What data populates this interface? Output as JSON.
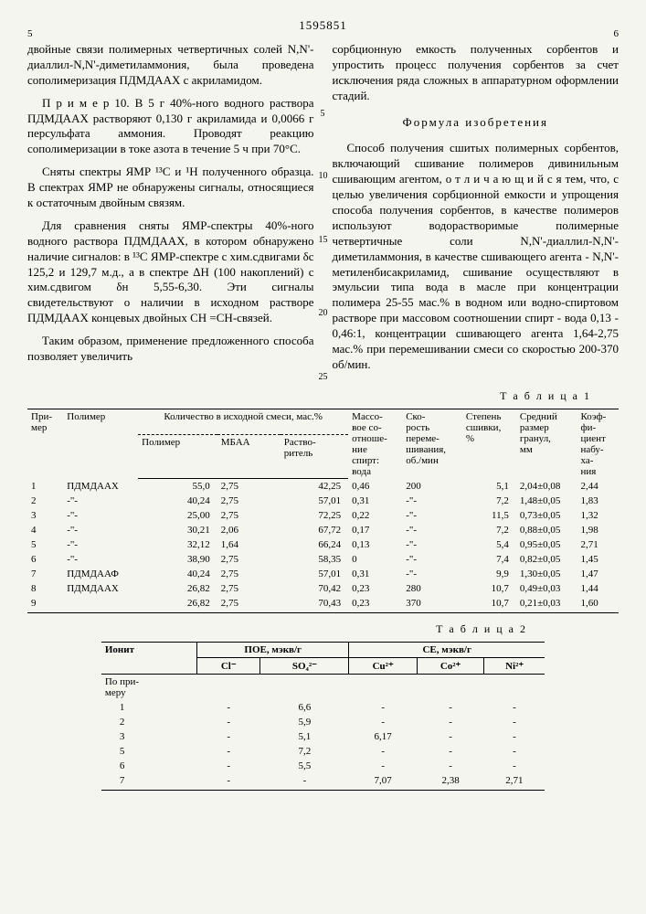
{
  "patent_number": "1595851",
  "col_left_num": "5",
  "col_right_num": "6",
  "left_paragraphs": {
    "p1": "двойные связи полимерных четвертичных солей N,N'-диаллил-N,N'-диметиламмония, была проведена сополимеризация ПДМДААХ с акриламидом.",
    "p2": "П р и м е р 10. В 5 г 40%-ного водного раствора ПДМДААХ растворяют 0,130 г акриламида и 0,0066 г персульфата аммония. Проводят реакцию сополимеризации в токе азота в течение 5 ч при 70°С.",
    "p3": "Сняты спектры ЯМР ¹³С и ¹Н полученного образца. В спектрах ЯМР не обнаружены сигналы, относящиеся к остаточным двойным связям.",
    "p4": "Для сравнения сняты ЯМР-спектры 40%-ного водного раствора ПДМДААХ, в котором обнаружено наличие сигналов: в ¹³С ЯМР-спектре с хим.сдвигами δс 125,2 и 129,7 м.д., а в спектре ∆Н (100 накоплений) с хим.сдвигом δн 5,55-6,30. Эти сигналы свидетельствуют о наличии в исходном растворе ПДМДААХ концевых двойных СН =СН-связей.",
    "p5": "Таким образом, применение предложенного способа позволяет увеличить"
  },
  "right_paragraphs": {
    "p1": "сорбционную емкость полученных сорбентов и упростить процесс получения сорбентов за счет исключения ряда сложных в аппаратурном оформлении стадий.",
    "formula_title": "Формула изобретения",
    "p2": "Способ получения сшитых полимерных сорбентов, включающий сшивание полимеров дивинильным сшивающим агентом, о т л и ч а ю щ и й с я тем, что, с целью увеличения сорбционной емкости и упрощения способа получения сорбентов, в качестве полимеров используют водорастворимые полимерные четвертичные соли N,N'-диаллил-N,N'-диметиламмония, в качестве сшивающего агента - N,N'-метиленбисакриламид, сшивание осуществляют в эмульсии типа вода в масле при концентрации полимера 25-55 мас.% в водном или водно-спиртовом растворе при массовом соотношении спирт - вода 0,13 - 0,46:1, концентрации сшивающего агента 1,64-2,75 мас.% при перемешивании смеси со скоростью 200-370 об/мин."
  },
  "line_markers": [
    "5",
    "10",
    "15",
    "20",
    "25"
  ],
  "table1": {
    "title": "Т а б л и ц а 1",
    "headers": {
      "h1": "При-\nмер",
      "h2": "Полимер",
      "h3": "Количество в исходной смеси, мас.%",
      "h3a": "Полимер",
      "h3b": "МБАА",
      "h3c": "Раство-\nритель",
      "h4": "Массо-\nвое со-\nотноше-\nние\nспирт:\nвода",
      "h5": "Ско-\nрость\nпереме-\nшивания,\nоб./мин",
      "h6": "Степень\nсшивки,\n%",
      "h7": "Средний\nразмер\nгранул,\nмм",
      "h8": "Коэф-\nфи-\nциент\nнабу-\nха-\nния"
    },
    "rows": [
      {
        "n": "1",
        "pol": "ПДМДААХ",
        "p": "55,0",
        "m": "2,75",
        "r": "42,25",
        "ratio": "0,46",
        "speed": "200",
        "cross": "5,1",
        "size": "2,04±0,08",
        "swell": "2,44"
      },
      {
        "n": "2",
        "pol": "-\"-",
        "p": "40,24",
        "m": "2,75",
        "r": "57,01",
        "ratio": "0,31",
        "speed": "-\"-",
        "cross": "7,2",
        "size": "1,48±0,05",
        "swell": "1,83"
      },
      {
        "n": "3",
        "pol": "-\"-",
        "p": "25,00",
        "m": "2,75",
        "r": "72,25",
        "ratio": "0,22",
        "speed": "-\"-",
        "cross": "11,5",
        "size": "0,73±0,05",
        "swell": "1,32"
      },
      {
        "n": "4",
        "pol": "-\"-",
        "p": "30,21",
        "m": "2,06",
        "r": "67,72",
        "ratio": "0,17",
        "speed": "-\"-",
        "cross": "7,2",
        "size": "0,88±0,05",
        "swell": "1,98"
      },
      {
        "n": "5",
        "pol": "-\"-",
        "p": "32,12",
        "m": "1,64",
        "r": "66,24",
        "ratio": "0,13",
        "speed": "-\"-",
        "cross": "5,4",
        "size": "0,95±0,05",
        "swell": "2,71"
      },
      {
        "n": "6",
        "pol": "-\"-",
        "p": "38,90",
        "m": "2,75",
        "r": "58,35",
        "ratio": "0",
        "speed": "-\"-",
        "cross": "7,4",
        "size": "0,82±0,05",
        "swell": "1,45"
      },
      {
        "n": "7",
        "pol": "ПДМДААФ",
        "p": "40,24",
        "m": "2,75",
        "r": "57,01",
        "ratio": "0,31",
        "speed": "-\"-",
        "cross": "9,9",
        "size": "1,30±0,05",
        "swell": "1,47"
      },
      {
        "n": "8",
        "pol": "ПДМДААХ",
        "p": "26,82",
        "m": "2,75",
        "r": "70,42",
        "ratio": "0,23",
        "speed": "280",
        "cross": "10,7",
        "size": "0,49±0,03",
        "swell": "1,44"
      },
      {
        "n": "9",
        "pol": "",
        "p": "26,82",
        "m": "2,75",
        "r": "70,43",
        "ratio": "0,23",
        "speed": "370",
        "cross": "10,7",
        "size": "0,21±0,03",
        "swell": "1,60"
      }
    ]
  },
  "table2": {
    "title": "Т а б л и ц а 2",
    "headers": {
      "h1": "Ионит",
      "h2": "ПОЕ, мэкв/г",
      "h3": "СЕ, мэкв/г",
      "c1": "Cl⁻",
      "c2": "SO₄²⁻",
      "c3": "Cu²⁺",
      "c4": "Co²⁺",
      "c5": "Ni²⁺"
    },
    "section_label": "По при-\nмеру",
    "rows": [
      {
        "n": "1",
        "cl": "-",
        "so4": "6,6",
        "cu": "-",
        "co": "-",
        "ni": "-"
      },
      {
        "n": "2",
        "cl": "-",
        "so4": "5,9",
        "cu": "-",
        "co": "-",
        "ni": "-"
      },
      {
        "n": "3",
        "cl": "-",
        "so4": "5,1",
        "cu": "6,17",
        "co": "-",
        "ni": "-"
      },
      {
        "n": "5",
        "cl": "-",
        "so4": "7,2",
        "cu": "-",
        "co": "-",
        "ni": "-"
      },
      {
        "n": "6",
        "cl": "-",
        "so4": "5,5",
        "cu": "-",
        "co": "-",
        "ni": "-"
      },
      {
        "n": "7",
        "cl": "-",
        "so4": "-",
        "cu": "7,07",
        "co": "2,38",
        "ni": "2,71"
      }
    ]
  }
}
